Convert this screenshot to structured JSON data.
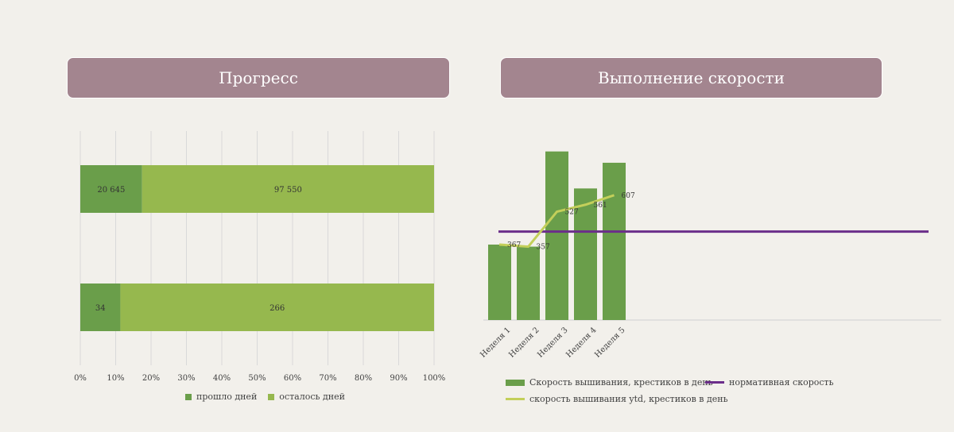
{
  "headers": {
    "left": "Прогресс",
    "right": "Выполнение скорости"
  },
  "colors": {
    "header_bg": "#a3858f",
    "passed": "#6a9e4a",
    "remaining": "#96b84e",
    "speed_bar": "#6a9e4a",
    "norm_line": "#6b2e8a",
    "ytd_line": "#c3cf5a"
  },
  "chart_data": [
    {
      "type": "bar",
      "orientation": "horizontal",
      "stacked": "percent",
      "categories": [
        "",
        ""
      ],
      "series": [
        {
          "name": "прошло дней",
          "values": [
            20645,
            34
          ],
          "labels": [
            "20 645",
            "34"
          ]
        },
        {
          "name": "осталось дней",
          "values": [
            97550,
            266
          ],
          "labels": [
            "97 550",
            "266"
          ]
        }
      ],
      "x_ticks": [
        "0%",
        "10%",
        "20%",
        "30%",
        "40%",
        "50%",
        "60%",
        "70%",
        "80%",
        "90%",
        "100%"
      ],
      "xlim": [
        0,
        100
      ],
      "grid": "vertical",
      "legend": "bottom"
    },
    {
      "type": "bar",
      "categories": [
        "Неделя 1",
        "Неделя 2",
        "Неделя 3",
        "Неделя 4",
        "Неделя 5"
      ],
      "series": [
        {
          "name": "Скорость вышивания, крестиков в день",
          "type": "bar",
          "values": [
            367,
            357,
            820,
            640,
            765
          ]
        },
        {
          "name": "нормативная скорость",
          "type": "line",
          "values": [
            430,
            430,
            430,
            430,
            430
          ]
        },
        {
          "name": "скорость вышивания ytd, крестиков в день",
          "type": "line",
          "values": [
            367,
            357,
            527,
            561,
            607
          ],
          "labels": [
            "367",
            "357",
            "527",
            "561",
            "607"
          ]
        }
      ],
      "ylim": [
        0,
        900
      ],
      "grid": "none",
      "legend": "bottom"
    }
  ]
}
